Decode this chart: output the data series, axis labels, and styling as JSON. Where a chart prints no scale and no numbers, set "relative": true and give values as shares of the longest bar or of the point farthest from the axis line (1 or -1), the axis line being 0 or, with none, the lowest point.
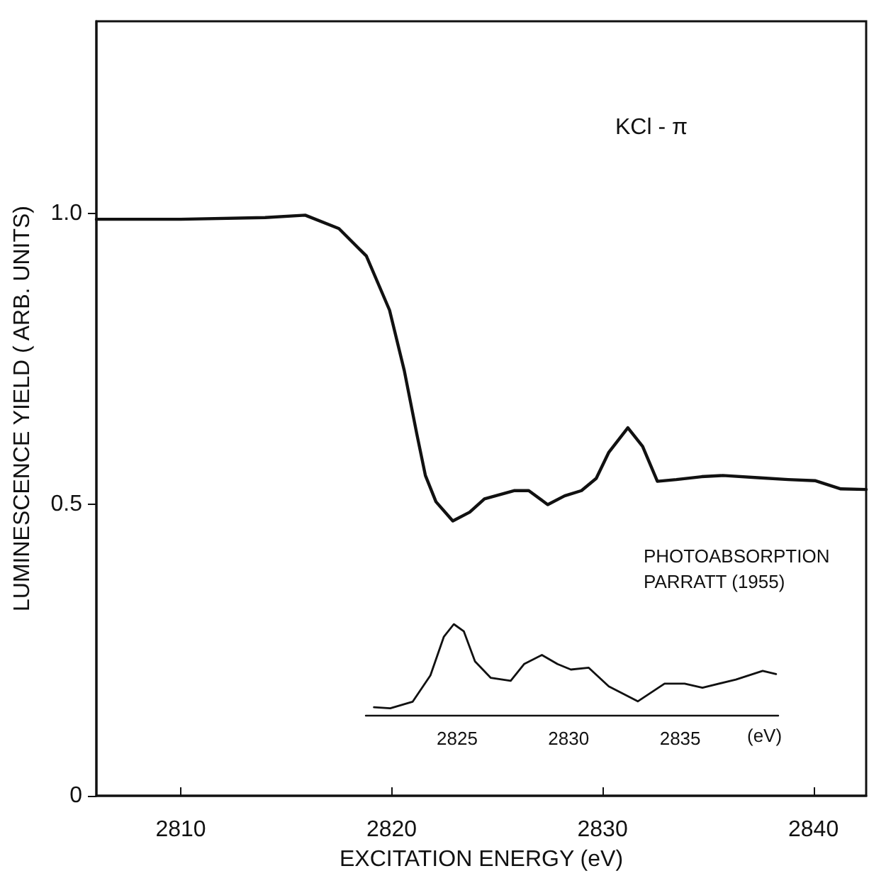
{
  "chart_data": [
    {
      "type": "line",
      "xlabel": "EXCITATION ENERGY (eV)",
      "ylabel": "LUMINESCENCE YIELD ( ARB. UNITS)",
      "annotations": [
        "KCl - π"
      ],
      "xlim": [
        2806,
        2842.5
      ],
      "xticks": [
        2810,
        2820,
        2830,
        2840
      ],
      "ylim": [
        0,
        1.33
      ],
      "yticks": [
        0,
        0.5,
        {
          "value": 1,
          "label": "1.0"
        }
      ],
      "marker": "none",
      "line_style": "solid",
      "series": [
        {
          "color": "#111111",
          "x": [
            2806,
            2810,
            2814,
            2815.9,
            2817.5,
            2818.8,
            2819.9,
            2820.6,
            2821.2,
            2821.6,
            2822.1,
            2822.9,
            2823.7,
            2824.4,
            2825.8,
            2826.5,
            2827.4,
            2828.2,
            2829.0,
            2829.7,
            2830.3,
            2831.2,
            2831.9,
            2832.6,
            2833.5,
            2834.7,
            2835.7,
            2837.5,
            2838.8,
            2840.1,
            2841.3,
            2842.5
          ],
          "values": [
            0.99,
            0.99,
            0.993,
            0.997,
            0.974,
            0.927,
            0.834,
            0.73,
            0.62,
            0.55,
            0.505,
            0.472,
            0.487,
            0.51,
            0.524,
            0.524,
            0.5,
            0.515,
            0.524,
            0.545,
            0.59,
            0.632,
            0.6,
            0.54,
            0.543,
            0.548,
            0.55,
            0.546,
            0.543,
            0.541,
            0.527,
            0.526
          ]
        }
      ]
    },
    {
      "type": "line",
      "title": "PHOTOABSORPTION\nPARRATT (1955)",
      "xlabel": "(eV)",
      "relative": true,
      "xlim": [
        2820.9,
        2839.4
      ],
      "xticks": [
        2825,
        2830,
        2835
      ],
      "marker": "none",
      "line_style": "solid",
      "series": [
        {
          "color": "#111111",
          "x": [
            2821.27,
            2822.0,
            2823.0,
            2823.8,
            2824.4,
            2824.85,
            2825.3,
            2825.8,
            2826.5,
            2827.4,
            2828.0,
            2828.8,
            2829.5,
            2830.1,
            2830.9,
            2831.8,
            2833.1,
            2834.3,
            2835.2,
            2836.0,
            2837.5,
            2838.7,
            2839.3
          ],
          "values": [
            0.085,
            0.073,
            0.145,
            0.436,
            0.86,
            1.0,
            0.92,
            0.59,
            0.41,
            0.376,
            0.56,
            0.66,
            0.56,
            0.5,
            0.52,
            0.315,
            0.15,
            0.345,
            0.345,
            0.3,
            0.39,
            0.485,
            0.45
          ]
        }
      ]
    }
  ]
}
